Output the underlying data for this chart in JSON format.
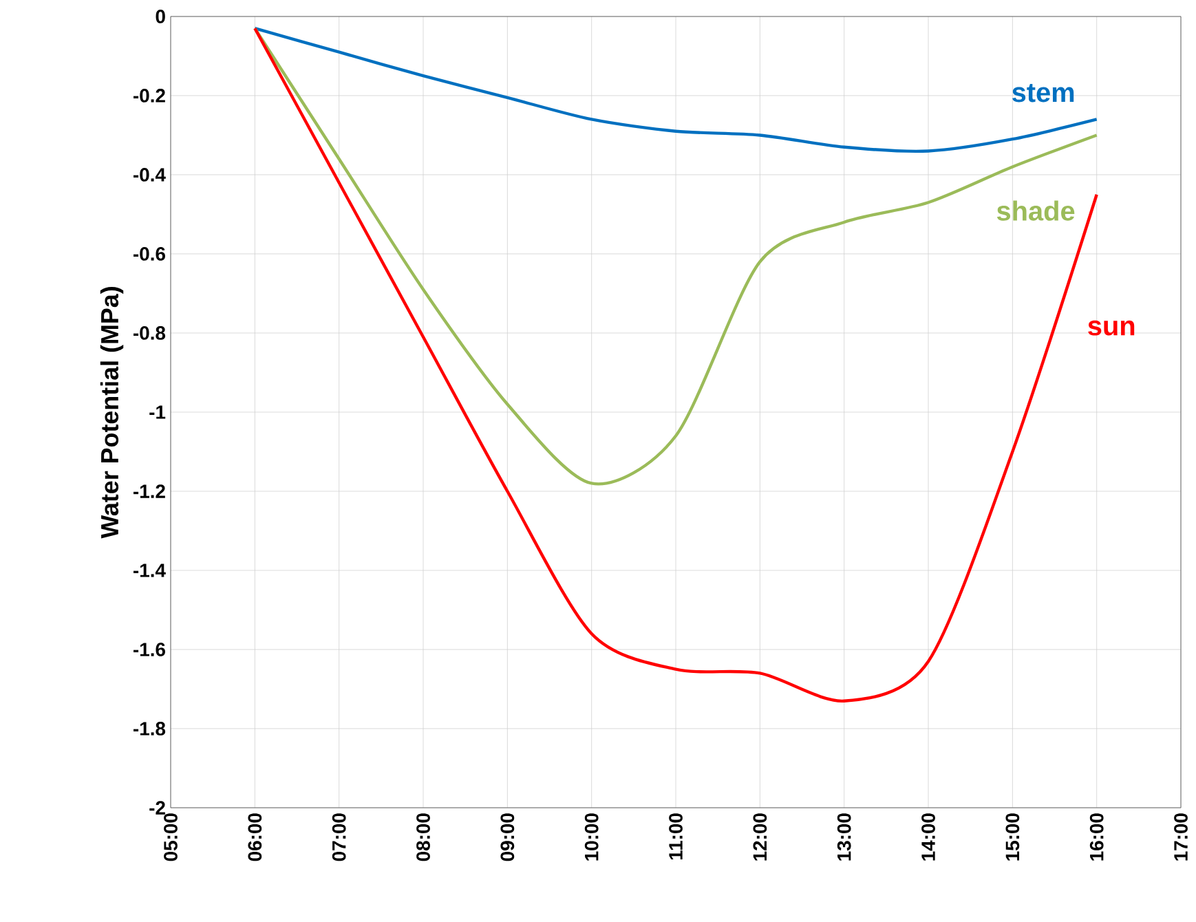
{
  "chart_data": {
    "type": "line",
    "ylabel": "Water Potential (MPa)",
    "x": [
      6,
      7,
      8,
      9,
      10,
      11,
      12,
      13,
      14,
      15,
      16
    ],
    "series": [
      {
        "name": "stem",
        "color": "#0070c0",
        "values": [
          -0.03,
          -0.09,
          -0.15,
          -0.205,
          -0.26,
          -0.29,
          -0.3,
          -0.33,
          -0.34,
          -0.31,
          -0.26
        ]
      },
      {
        "name": "shade",
        "color": "#9bbb59",
        "values": [
          -0.03,
          -0.36,
          -0.69,
          -0.98,
          -1.18,
          -1.06,
          -0.62,
          -0.52,
          -0.47,
          -0.38,
          -0.3
        ]
      },
      {
        "name": "sun",
        "color": "#ff0000",
        "values": [
          -0.03,
          -0.42,
          -0.81,
          -1.2,
          -1.56,
          -1.65,
          -1.66,
          -1.73,
          -1.63,
          -1.1,
          -0.45
        ]
      }
    ],
    "xlim": [
      5,
      17
    ],
    "xticks": [
      {
        "value": 5,
        "label": "05:00"
      },
      {
        "value": 6,
        "label": "06:00"
      },
      {
        "value": 7,
        "label": "07:00"
      },
      {
        "value": 8,
        "label": "08:00"
      },
      {
        "value": 9,
        "label": "09:00"
      },
      {
        "value": 10,
        "label": "10:00"
      },
      {
        "value": 11,
        "label": "11:00"
      },
      {
        "value": 12,
        "label": "12:00"
      },
      {
        "value": 13,
        "label": "13:00"
      },
      {
        "value": 14,
        "label": "14:00"
      },
      {
        "value": 15,
        "label": "15:00"
      },
      {
        "value": 16,
        "label": "16:00"
      },
      {
        "value": 17,
        "label": "17:00"
      }
    ],
    "ylim": [
      -2,
      0
    ],
    "yticks": [
      -2,
      -1.8,
      -1.6,
      -1.4,
      -1.2,
      -1,
      -0.8,
      -0.6,
      -0.4,
      -0.2,
      0
    ],
    "grid": true,
    "marker": "none",
    "line_style": "solid"
  }
}
